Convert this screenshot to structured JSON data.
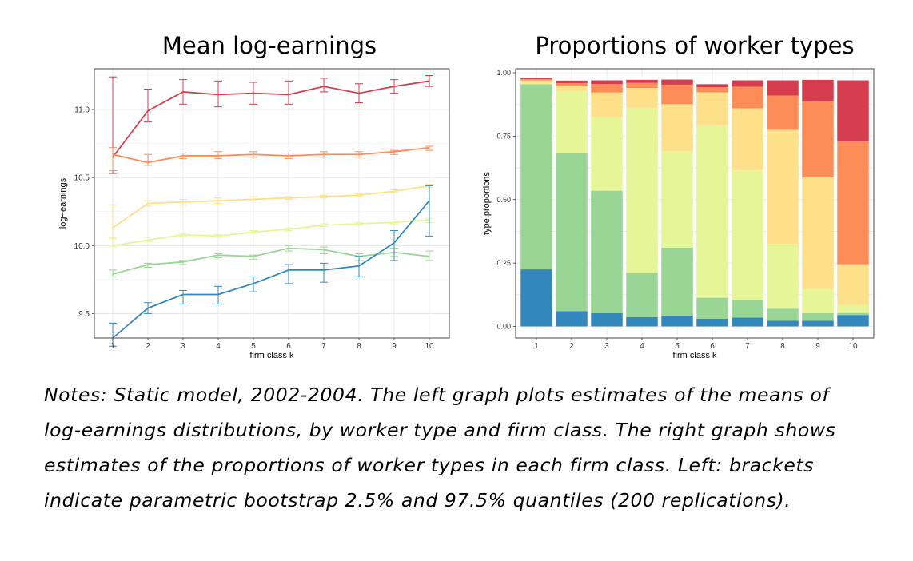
{
  "chart_data": [
    {
      "type": "line",
      "title": "Mean log-earnings",
      "xlabel": "firm class k",
      "ylabel": "log−earnings",
      "x": [
        1,
        2,
        3,
        4,
        5,
        6,
        7,
        8,
        9,
        10
      ],
      "ylim": [
        9.32,
        11.3
      ],
      "yticks": [
        9.5,
        10.0,
        10.5,
        11.0
      ],
      "ytick_labels": [
        "9.5",
        "10.0",
        "10.5",
        "11.0"
      ],
      "grid": true,
      "error_bars": "2.5% and 97.5% bootstrap quantiles",
      "series": [
        {
          "color": "#d53e4f",
          "values": [
            10.65,
            10.99,
            11.13,
            11.11,
            11.12,
            11.11,
            11.17,
            11.12,
            11.17,
            11.21
          ],
          "lower": [
            10.53,
            10.91,
            11.04,
            11.02,
            11.04,
            11.04,
            11.13,
            11.05,
            11.12,
            11.17
          ],
          "upper": [
            11.24,
            11.15,
            11.22,
            11.21,
            11.2,
            11.21,
            11.23,
            11.19,
            11.22,
            11.25
          ]
        },
        {
          "color": "#fc8d59",
          "values": [
            10.67,
            10.61,
            10.66,
            10.66,
            10.67,
            10.66,
            10.67,
            10.67,
            10.69,
            10.72
          ],
          "lower": [
            10.55,
            10.59,
            10.64,
            10.64,
            10.65,
            10.64,
            10.65,
            10.65,
            10.67,
            10.7
          ],
          "upper": [
            10.72,
            10.67,
            10.68,
            10.69,
            10.69,
            10.68,
            10.69,
            10.69,
            10.7,
            10.73
          ]
        },
        {
          "color": "#fee08b",
          "values": [
            10.13,
            10.31,
            10.32,
            10.33,
            10.34,
            10.35,
            10.36,
            10.37,
            10.4,
            10.44
          ],
          "lower": [
            10.06,
            10.29,
            10.3,
            10.31,
            10.33,
            10.34,
            10.35,
            10.36,
            10.39,
            10.43
          ],
          "upper": [
            10.3,
            10.33,
            10.34,
            10.35,
            10.36,
            10.36,
            10.37,
            10.38,
            10.41,
            10.45
          ]
        },
        {
          "color": "#e6f598",
          "values": [
            10.0,
            10.04,
            10.08,
            10.07,
            10.1,
            10.12,
            10.15,
            10.16,
            10.17,
            10.19
          ],
          "lower": [
            9.99,
            10.03,
            10.07,
            10.06,
            10.09,
            10.11,
            10.14,
            10.15,
            10.16,
            10.17
          ],
          "upper": [
            10.05,
            10.06,
            10.09,
            10.08,
            10.11,
            10.13,
            10.16,
            10.17,
            10.18,
            10.2
          ]
        },
        {
          "color": "#99d594",
          "values": [
            9.79,
            9.86,
            9.88,
            9.93,
            9.92,
            9.98,
            9.97,
            9.92,
            9.95,
            9.92
          ],
          "lower": [
            9.77,
            9.84,
            9.86,
            9.91,
            9.9,
            9.96,
            9.94,
            9.89,
            9.92,
            9.89
          ],
          "upper": [
            9.82,
            9.87,
            9.89,
            9.94,
            9.93,
            10.0,
            9.99,
            9.94,
            9.98,
            9.96
          ]
        },
        {
          "color": "#3288bd",
          "values": [
            9.32,
            9.54,
            9.64,
            9.64,
            9.72,
            9.82,
            9.82,
            9.85,
            10.02,
            10.33
          ],
          "lower": [
            9.26,
            9.5,
            9.57,
            9.57,
            9.66,
            9.72,
            9.73,
            9.77,
            9.89,
            10.07
          ],
          "upper": [
            9.43,
            9.58,
            9.67,
            9.7,
            9.77,
            9.86,
            9.87,
            9.92,
            10.11,
            10.44
          ]
        }
      ]
    },
    {
      "type": "bar",
      "stacked": true,
      "title": "Proportions of worker types",
      "xlabel": "firm class k",
      "ylabel": "type proportions",
      "categories": [
        "1",
        "2",
        "3",
        "4",
        "5",
        "6",
        "7",
        "8",
        "9",
        "10"
      ],
      "ylim": [
        0,
        1
      ],
      "yticks": [
        0,
        0.25,
        0.5,
        0.75,
        1.0
      ],
      "ytick_labels": [
        "0.00",
        "0.25",
        "0.50",
        "0.75",
        "1.00"
      ],
      "grid": true,
      "series": [
        {
          "color": "#3288bd",
          "values": [
            0.225,
            0.06,
            0.052,
            0.037,
            0.043,
            0.03,
            0.035,
            0.022,
            0.022,
            0.045
          ]
        },
        {
          "color": "#99d594",
          "values": [
            0.73,
            0.622,
            0.483,
            0.175,
            0.268,
            0.083,
            0.07,
            0.048,
            0.03,
            0.008
          ]
        },
        {
          "color": "#e6f598",
          "values": [
            0.005,
            0.245,
            0.29,
            0.65,
            0.38,
            0.68,
            0.51,
            0.255,
            0.095,
            0.032
          ]
        },
        {
          "color": "#fee08b",
          "values": [
            0.01,
            0.02,
            0.097,
            0.078,
            0.185,
            0.13,
            0.245,
            0.45,
            0.44,
            0.16
          ]
        },
        {
          "color": "#fc8d59",
          "values": [
            0.005,
            0.012,
            0.033,
            0.02,
            0.077,
            0.02,
            0.085,
            0.135,
            0.3,
            0.485
          ]
        },
        {
          "color": "#d53e4f",
          "values": [
            0.005,
            0.01,
            0.015,
            0.012,
            0.02,
            0.012,
            0.025,
            0.06,
            0.085,
            0.24
          ]
        }
      ]
    }
  ],
  "notes": {
    "lines": [
      "Notes: Static model, 2002-2004.  The left graph plots estimates of the means of",
      "log-earnings distributions, by worker type and firm class.  The right graph shows",
      "estimates of the proportions of worker types in each firm class.  Left: brackets",
      "indicate parametric bootstrap 2.5% and 97.5% quantiles (200 replications)."
    ]
  }
}
